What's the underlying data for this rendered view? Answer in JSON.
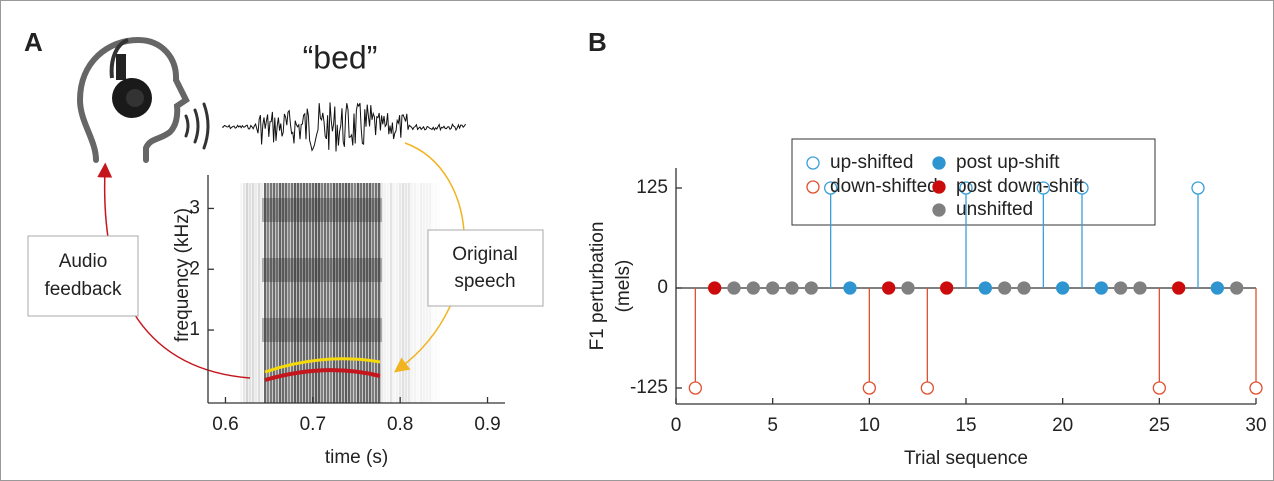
{
  "chart_data": [
    {
      "type": "spectrogram",
      "panel": "A",
      "title": "“bed”",
      "xlabel": "time (s)",
      "ylabel": "frequency (kHz)",
      "xlim": [
        0.58,
        0.92
      ],
      "xticks": [
        0.6,
        0.7,
        0.8,
        0.9
      ],
      "ylim": [
        -0.2,
        3.55
      ],
      "yticks": [
        1,
        2,
        3
      ],
      "annotations": [
        [
          "Audio",
          "feedback"
        ],
        [
          "Original",
          "speech"
        ]
      ]
    },
    {
      "type": "stem",
      "panel": "B",
      "xlabel": "Trial sequence",
      "ylabel": [
        "F1 perturbation",
        "(mels)"
      ],
      "xlim": [
        0,
        30
      ],
      "xticks": [
        0,
        5,
        10,
        15,
        20,
        25,
        30
      ],
      "ylim": [
        -145,
        150
      ],
      "yticks": [
        -125,
        0,
        125
      ],
      "series": [
        {
          "name": "up-shifted",
          "color": "#3b9fd8",
          "marker": "open",
          "x": [
            8,
            15,
            19,
            21,
            27
          ],
          "values": [
            125,
            125,
            125,
            125,
            125
          ]
        },
        {
          "name": "down-shifted",
          "color": "#e0502f",
          "marker": "open",
          "x": [
            1,
            10,
            13,
            25,
            30
          ],
          "values": [
            -125,
            -125,
            -125,
            -125,
            -125
          ]
        },
        {
          "name": "post up-shift",
          "color": "#2f95d0",
          "marker": "filled",
          "x": [
            9,
            16,
            20,
            22,
            28
          ],
          "values": [
            0,
            0,
            0,
            0,
            0
          ]
        },
        {
          "name": "post down-shift",
          "color": "#cc0c0c",
          "marker": "filled",
          "x": [
            2,
            11,
            14,
            26
          ],
          "values": [
            0,
            0,
            0,
            0
          ]
        },
        {
          "name": "unshifted",
          "color": "#808080",
          "marker": "filled",
          "x": [
            3,
            4,
            5,
            6,
            7,
            12,
            17,
            18,
            23,
            24,
            29
          ],
          "values": [
            0,
            0,
            0,
            0,
            0,
            0,
            0,
            0,
            0,
            0,
            0
          ]
        }
      ]
    }
  ]
}
